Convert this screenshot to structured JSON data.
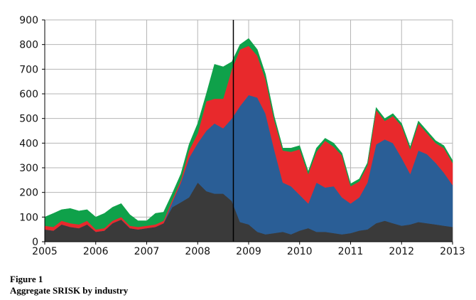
{
  "figure": {
    "number": "Figure 1",
    "caption": "Aggregate SRISK by industry"
  },
  "chart_data": {
    "type": "area",
    "stacked": true,
    "title": "",
    "xlabel": "",
    "ylabel": "",
    "xlim": [
      2005,
      2013
    ],
    "ylim": [
      0,
      900
    ],
    "x_ticks": [
      2005,
      2006,
      2007,
      2008,
      2009,
      2010,
      2011,
      2012,
      2013
    ],
    "y_ticks": [
      0,
      100,
      200,
      300,
      400,
      500,
      600,
      700,
      800,
      900
    ],
    "grid": true,
    "legend": "none",
    "reference_line_x": 2008.7,
    "x": [
      2005.0,
      2005.17,
      2005.33,
      2005.5,
      2005.67,
      2005.83,
      2006.0,
      2006.17,
      2006.33,
      2006.5,
      2006.67,
      2006.83,
      2007.0,
      2007.17,
      2007.33,
      2007.5,
      2007.67,
      2007.83,
      2008.0,
      2008.17,
      2008.33,
      2008.5,
      2008.67,
      2008.83,
      2009.0,
      2009.17,
      2009.33,
      2009.5,
      2009.67,
      2009.83,
      2010.0,
      2010.17,
      2010.33,
      2010.5,
      2010.67,
      2010.83,
      2011.0,
      2011.17,
      2011.33,
      2011.5,
      2011.67,
      2011.83,
      2012.0,
      2012.17,
      2012.33,
      2012.5,
      2012.67,
      2012.83,
      2013.0
    ],
    "series": [
      {
        "color": "#3a3a3a",
        "values": [
          50,
          45,
          70,
          60,
          55,
          70,
          40,
          45,
          75,
          90,
          55,
          50,
          55,
          60,
          75,
          140,
          160,
          180,
          240,
          205,
          195,
          195,
          165,
          80,
          70,
          40,
          30,
          35,
          40,
          30,
          45,
          55,
          40,
          40,
          35,
          30,
          35,
          45,
          50,
          75,
          85,
          75,
          65,
          70,
          80,
          75,
          70,
          65,
          60
        ]
      },
      {
        "color": "#2a5e96",
        "values": [
          0,
          0,
          0,
          0,
          0,
          0,
          0,
          0,
          0,
          0,
          0,
          0,
          0,
          0,
          0,
          20,
          80,
          160,
          160,
          245,
          285,
          265,
          335,
          470,
          525,
          545,
          490,
          340,
          200,
          195,
          145,
          100,
          200,
          180,
          190,
          150,
          120,
          135,
          190,
          320,
          330,
          325,
          275,
          205,
          290,
          280,
          250,
          215,
          170
        ]
      },
      {
        "color": "#e8292c",
        "values": [
          15,
          15,
          15,
          15,
          15,
          15,
          10,
          10,
          10,
          10,
          10,
          10,
          10,
          10,
          10,
          10,
          10,
          30,
          40,
          120,
          100,
          120,
          200,
          230,
          200,
          170,
          140,
          120,
          130,
          140,
          185,
          120,
          125,
          190,
          160,
          170,
          70,
          65,
          70,
          140,
          75,
          110,
          130,
          100,
          110,
          85,
          80,
          100,
          90
        ]
      },
      {
        "color": "#0fa14a",
        "values": [
          35,
          55,
          45,
          60,
          55,
          45,
          50,
          60,
          55,
          55,
          45,
          25,
          20,
          45,
          35,
          25,
          25,
          25,
          40,
          30,
          140,
          130,
          30,
          20,
          30,
          25,
          20,
          15,
          10,
          15,
          15,
          10,
          15,
          10,
          15,
          10,
          10,
          10,
          10,
          10,
          10,
          10,
          10,
          10,
          10,
          10,
          10,
          10,
          10
        ]
      }
    ]
  }
}
